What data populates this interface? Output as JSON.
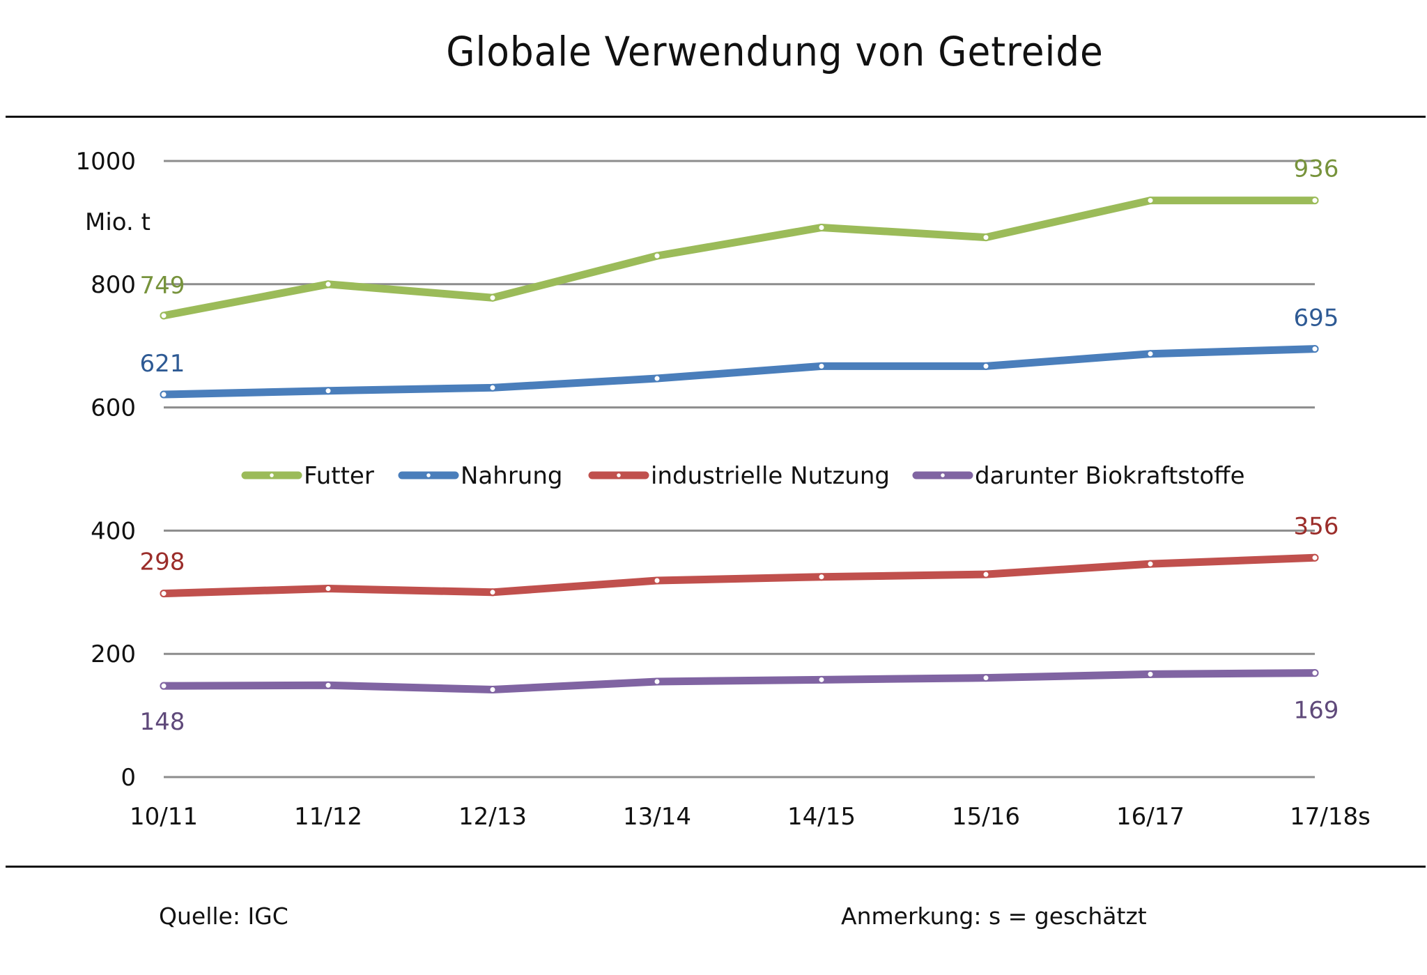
{
  "header": {
    "title": "Globale Verwendung von Getreide"
  },
  "footer": {
    "source": "Quelle: IGC",
    "note": "Anmerkung: s = geschätzt"
  },
  "chart_data": {
    "type": "line",
    "title": "Globale Verwendung von Getreide",
    "xlabel": "",
    "ylabel": "Mio. t",
    "ylim": [
      0,
      1000
    ],
    "yticks": [
      0,
      200,
      400,
      600,
      800,
      1000
    ],
    "ytick_labels": [
      "0",
      "200",
      "400",
      "600",
      "800",
      "1000"
    ],
    "grid": true,
    "legend": "middle",
    "categories": [
      "10/11",
      "11/12",
      "12/13",
      "13/14",
      "14/15",
      "15/16",
      "16/17",
      "17/18s"
    ],
    "series": [
      {
        "name": "Futter",
        "color": "#9BBB59",
        "label_color": "#77933C",
        "values": [
          749,
          800,
          778,
          846,
          892,
          876,
          936,
          936
        ],
        "first_label": "749",
        "last_label": "936"
      },
      {
        "name": "Nahrung",
        "color": "#4A7EBB",
        "label_color": "#2E5A94",
        "values": [
          621,
          627,
          632,
          647,
          667,
          667,
          687,
          695
        ],
        "first_label": "621",
        "last_label": "695"
      },
      {
        "name": "industrielle Nutzung",
        "color": "#C0504D",
        "label_color": "#9B2D2A",
        "values": [
          298,
          306,
          300,
          319,
          325,
          329,
          346,
          356
        ],
        "first_label": "298",
        "last_label": "356"
      },
      {
        "name": "darunter Biokraftstoffe",
        "color": "#8064A2",
        "label_color": "#5F497A",
        "values": [
          148,
          149,
          142,
          155,
          158,
          161,
          167,
          169
        ],
        "first_label": "148",
        "last_label": "169"
      }
    ]
  }
}
